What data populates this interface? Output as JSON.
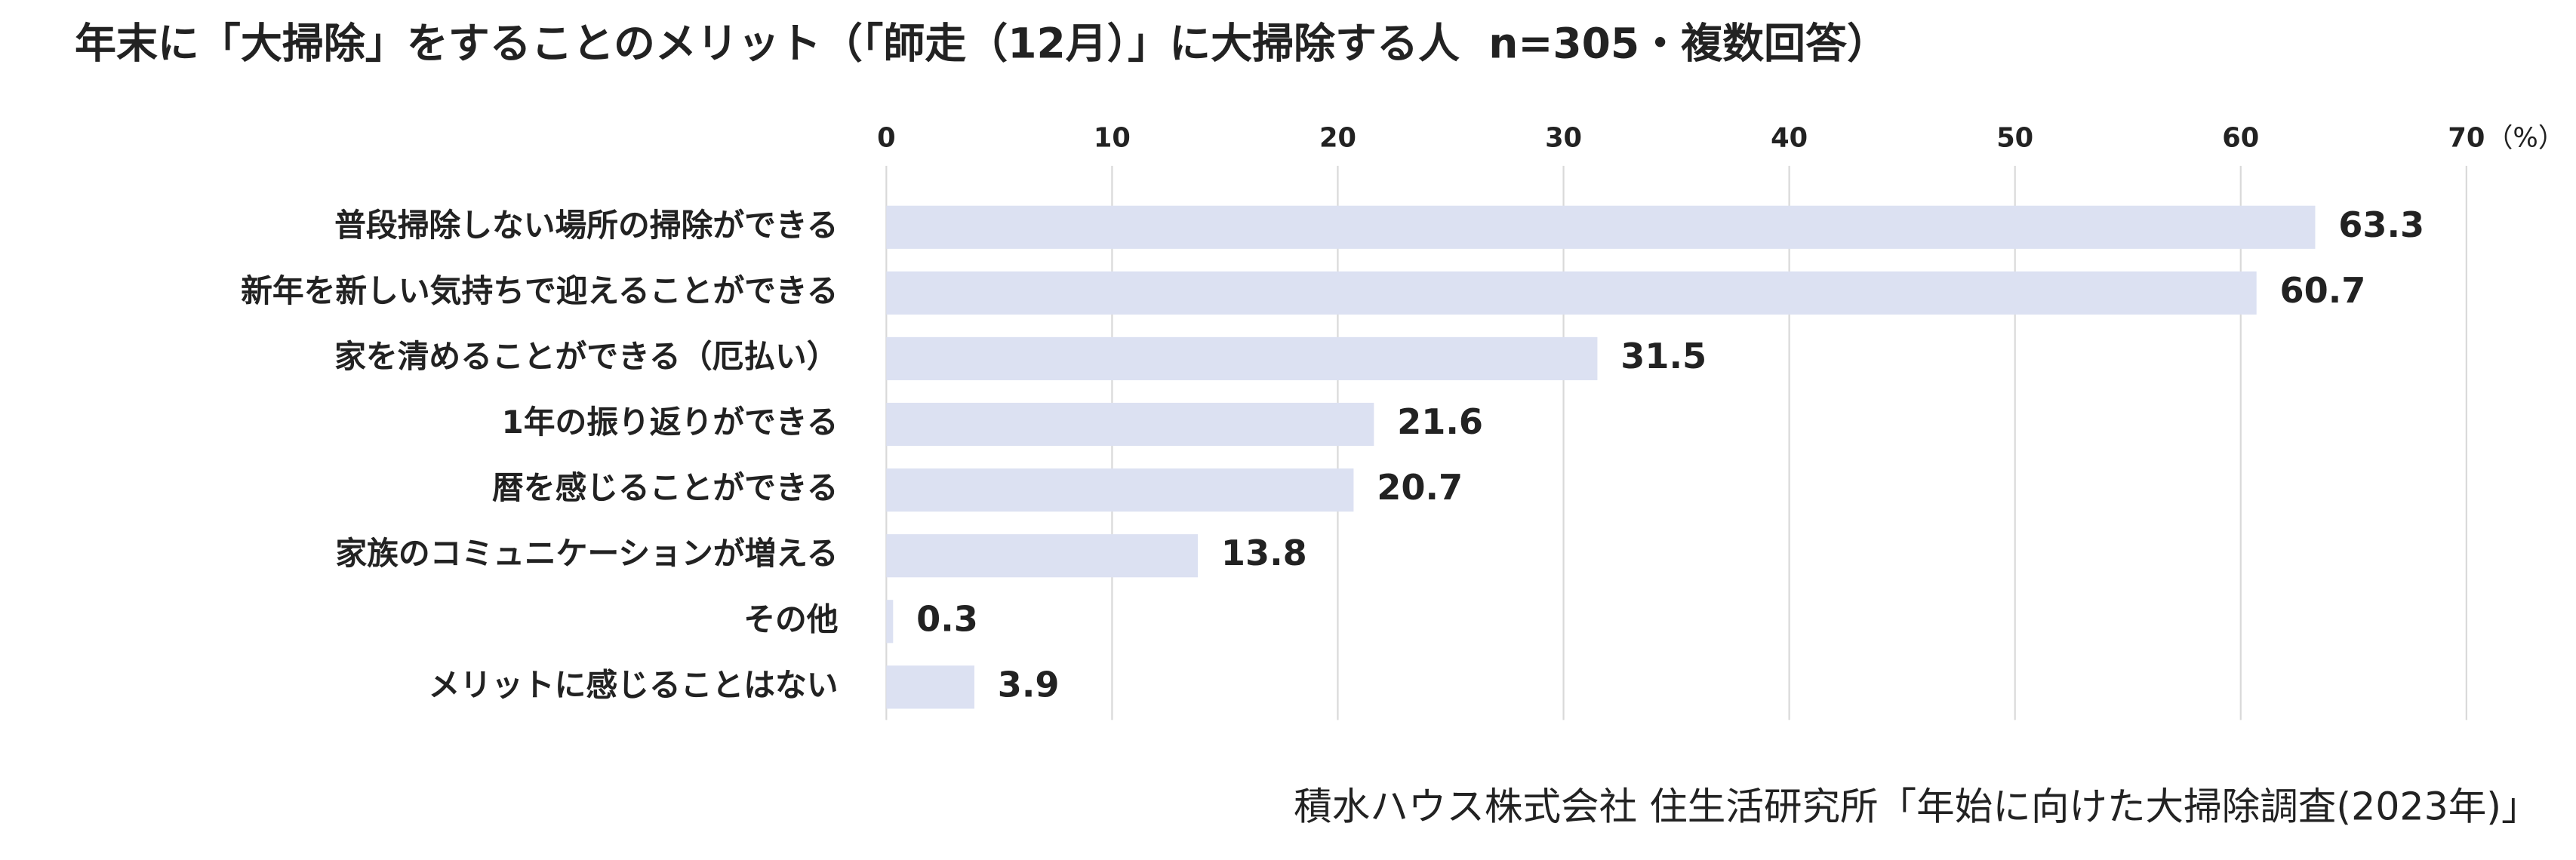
{
  "chart_data": {
    "type": "hbar",
    "title": "年末に「大掃除」をすることのメリット（「師走（12月）」に大掃除する人  n=305・複数回答）",
    "x_unit_label": "（%）",
    "categories": [
      "普段掃除しない場所の掃除ができる",
      "新年を新しい気持ちで迎えることができる",
      "家を清めることができる（厄払い）",
      "1年の振り返りができる",
      "暦を感じることができる",
      "家族のコミュニケーションが増える",
      "その他",
      "メリットに感じることはない"
    ],
    "values": [
      63.3,
      60.7,
      31.5,
      21.6,
      20.7,
      13.8,
      0.3,
      3.9
    ],
    "color": "#dce1f2",
    "xlim": [
      0,
      70
    ],
    "xticks": [
      0,
      10,
      20,
      30,
      40,
      50,
      60,
      70
    ],
    "grid": true,
    "source": "積水ハウス株式会社 住生活研究所「年始に向けた大掃除調査(2023年)」"
  }
}
